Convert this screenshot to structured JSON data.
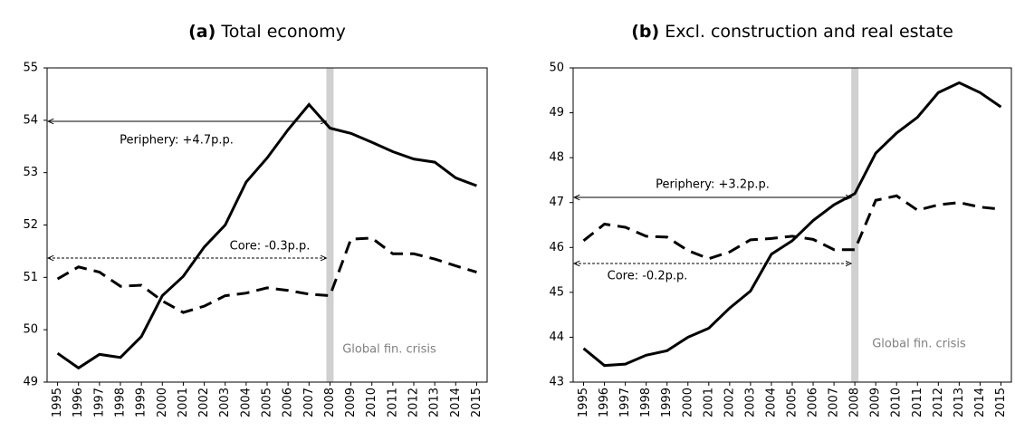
{
  "chart_data": [
    {
      "type": "line",
      "panel_label": "(a)",
      "title": "Total economy",
      "categories": [
        "1995",
        "1996",
        "1997",
        "1998",
        "1999",
        "2000",
        "2001",
        "2002",
        "2003",
        "2004",
        "2005",
        "2006",
        "2007",
        "2008",
        "2009",
        "2010",
        "2011",
        "2012",
        "2013",
        "2014",
        "2015"
      ],
      "series": [
        {
          "name": "Periphery",
          "color": "#000000",
          "dash": "solid",
          "values": [
            49.55,
            49.27,
            49.53,
            49.47,
            49.87,
            50.65,
            51.02,
            51.58,
            52.0,
            52.82,
            53.28,
            53.82,
            54.3,
            53.85,
            53.75,
            53.58,
            53.4,
            53.26,
            53.2,
            52.9,
            52.75
          ]
        },
        {
          "name": "Core",
          "color": "#000000",
          "dash": "dashed",
          "values": [
            50.97,
            51.2,
            51.1,
            50.83,
            50.85,
            50.55,
            50.33,
            50.45,
            50.65,
            50.7,
            50.8,
            50.75,
            50.68,
            50.65,
            51.73,
            51.75,
            51.45,
            51.45,
            51.35,
            51.22,
            51.1
          ]
        }
      ],
      "annotations": [
        "Periphery: +4.7p.p.",
        "Core: -0.3p.p.",
        "Global fin. crisis"
      ],
      "ylim": [
        49,
        55
      ],
      "yticks": [
        49,
        50,
        51,
        52,
        53,
        54,
        55
      ]
    },
    {
      "type": "line",
      "panel_label": "(b)",
      "title": "Excl. construction and real estate",
      "categories": [
        "1995",
        "1996",
        "1997",
        "1998",
        "1999",
        "2000",
        "2001",
        "2002",
        "2003",
        "2004",
        "2005",
        "2006",
        "2007",
        "2008",
        "2009",
        "2010",
        "2011",
        "2012",
        "2013",
        "2014",
        "2015"
      ],
      "series": [
        {
          "name": "Periphery",
          "color": "#000000",
          "dash": "solid",
          "values": [
            43.75,
            43.37,
            43.4,
            43.6,
            43.7,
            44.0,
            44.2,
            44.65,
            45.03,
            45.85,
            46.15,
            46.6,
            46.95,
            47.2,
            48.1,
            48.55,
            48.9,
            49.45,
            49.67,
            49.45,
            49.13
          ]
        },
        {
          "name": "Core",
          "color": "#000000",
          "dash": "dashed",
          "values": [
            46.15,
            46.52,
            46.45,
            46.25,
            46.23,
            45.93,
            45.75,
            45.9,
            46.17,
            46.2,
            46.25,
            46.18,
            45.95,
            45.95,
            47.05,
            47.15,
            46.83,
            46.95,
            47.0,
            46.9,
            46.85
          ]
        }
      ],
      "annotations": [
        "Periphery: +3.2p.p.",
        "Core: -0.2p.p.",
        "Global fin. crisis"
      ],
      "ylim": [
        43,
        50
      ],
      "yticks": [
        43,
        44,
        45,
        46,
        47,
        48,
        49,
        50
      ]
    }
  ]
}
